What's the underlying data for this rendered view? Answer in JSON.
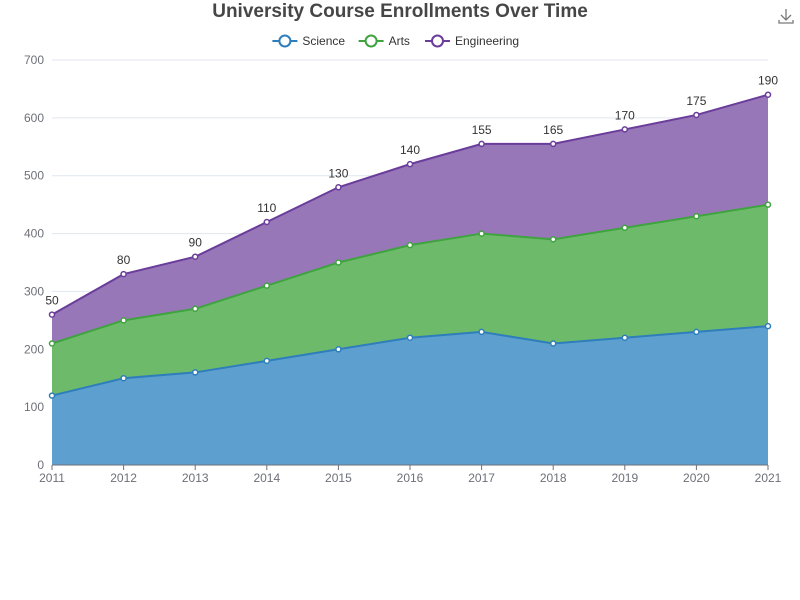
{
  "chart_data": {
    "type": "area",
    "stacked": true,
    "title": "University Course Enrollments Over Time",
    "x": [
      "2011",
      "2012",
      "2013",
      "2014",
      "2015",
      "2016",
      "2017",
      "2018",
      "2019",
      "2020",
      "2021"
    ],
    "series": [
      {
        "name": "Science",
        "color": "#2f7ebc",
        "area_color": "#5d9fcf",
        "values": [
          120,
          150,
          160,
          180,
          200,
          220,
          230,
          210,
          220,
          230,
          240
        ]
      },
      {
        "name": "Arts",
        "color": "#3fa33f",
        "area_color": "#6dbb6a",
        "values": [
          90,
          100,
          110,
          130,
          150,
          160,
          170,
          180,
          190,
          200,
          210
        ]
      },
      {
        "name": "Engineering",
        "color": "#6a3d9a",
        "area_color": "#9777b8",
        "values": [
          50,
          80,
          90,
          110,
          130,
          140,
          155,
          165,
          170,
          175,
          190
        ],
        "data_labels": true
      }
    ],
    "ylim": [
      0,
      700
    ],
    "yticks": [
      0,
      100,
      200,
      300,
      400,
      500,
      600,
      700
    ],
    "grid": true,
    "legend": "top-center"
  },
  "toolbox": {
    "download_icon": "download-icon"
  }
}
